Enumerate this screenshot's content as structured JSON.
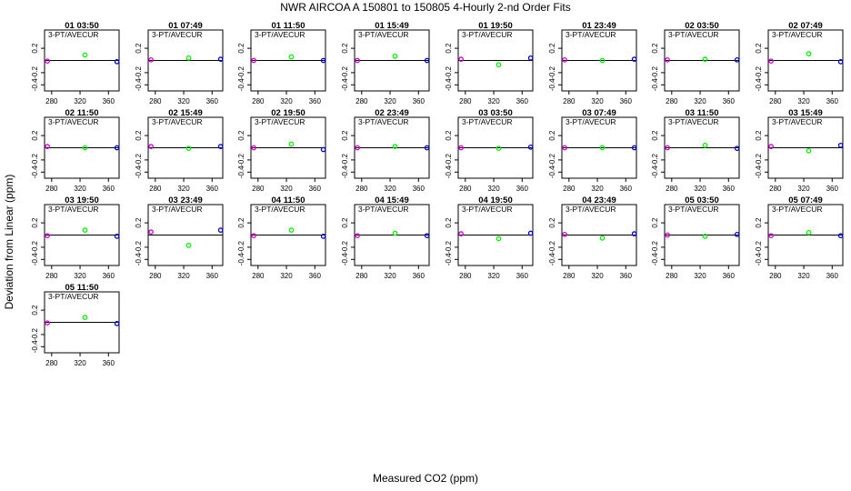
{
  "figure": {
    "title": "NWR   AIRCOA A   150801 to 150805   4-Hourly 2-nd Order Fits",
    "xlabel": "Measured CO2 (ppm)",
    "ylabel": "Deviation from Linear (ppm)"
  },
  "panel_label": "3-PT/AVECUR",
  "colors": {
    "low": "#cc00cc",
    "mid": "#00ee00",
    "high": "#0000cc",
    "line": "#000000"
  },
  "chart_data": {
    "type": "scatter",
    "xlim": [
      270,
      375
    ],
    "ylim": [
      -0.5,
      0.5
    ],
    "x_ticks": [
      280,
      320,
      360
    ],
    "y_ticks": [
      -0.4,
      -0.2,
      0.2
    ],
    "grid": false,
    "x": [
      274,
      327,
      372
    ],
    "panels": [
      {
        "title": "01 03:50",
        "y": [
          -0.01,
          0.09,
          -0.02
        ]
      },
      {
        "title": "01 07:49",
        "y": [
          0.01,
          0.04,
          0.02
        ]
      },
      {
        "title": "01 11:50",
        "y": [
          0.0,
          0.06,
          0.0
        ]
      },
      {
        "title": "01 15:49",
        "y": [
          0.0,
          0.07,
          0.0
        ]
      },
      {
        "title": "01 19:50",
        "y": [
          0.02,
          -0.07,
          0.04
        ]
      },
      {
        "title": "01 23:49",
        "y": [
          0.01,
          0.0,
          0.02
        ]
      },
      {
        "title": "02 03:50",
        "y": [
          0.01,
          0.02,
          0.01
        ]
      },
      {
        "title": "02 07:49",
        "y": [
          -0.01,
          0.11,
          -0.02
        ]
      },
      {
        "title": "02 11:50",
        "y": [
          0.02,
          0.0,
          0.0
        ]
      },
      {
        "title": "02 15:49",
        "y": [
          0.02,
          -0.01,
          0.02
        ]
      },
      {
        "title": "02 19:50",
        "y": [
          0.0,
          0.06,
          -0.03
        ]
      },
      {
        "title": "02 23:49",
        "y": [
          0.0,
          0.02,
          0.0
        ]
      },
      {
        "title": "03 03:50",
        "y": [
          0.0,
          -0.01,
          0.01
        ]
      },
      {
        "title": "03 07:49",
        "y": [
          0.0,
          0.0,
          0.0
        ]
      },
      {
        "title": "03 11:50",
        "y": [
          0.0,
          0.04,
          -0.01
        ]
      },
      {
        "title": "03 15:49",
        "y": [
          0.02,
          -0.05,
          0.04
        ]
      },
      {
        "title": "03 19:50",
        "y": [
          -0.01,
          0.08,
          -0.02
        ]
      },
      {
        "title": "03 23:49",
        "y": [
          0.05,
          -0.17,
          0.08
        ]
      },
      {
        "title": "04 11:50",
        "y": [
          -0.01,
          0.08,
          -0.02
        ]
      },
      {
        "title": "04 15:49",
        "y": [
          -0.01,
          0.03,
          -0.01
        ]
      },
      {
        "title": "04 19:50",
        "y": [
          0.02,
          -0.06,
          0.03
        ]
      },
      {
        "title": "04 23:49",
        "y": [
          0.01,
          -0.05,
          0.02
        ]
      },
      {
        "title": "05 03:50",
        "y": [
          0.0,
          -0.02,
          0.01
        ]
      },
      {
        "title": "05 07:49",
        "y": [
          -0.01,
          0.04,
          -0.01
        ]
      },
      {
        "title": "05 11:50",
        "y": [
          -0.01,
          0.08,
          -0.02
        ]
      }
    ]
  }
}
